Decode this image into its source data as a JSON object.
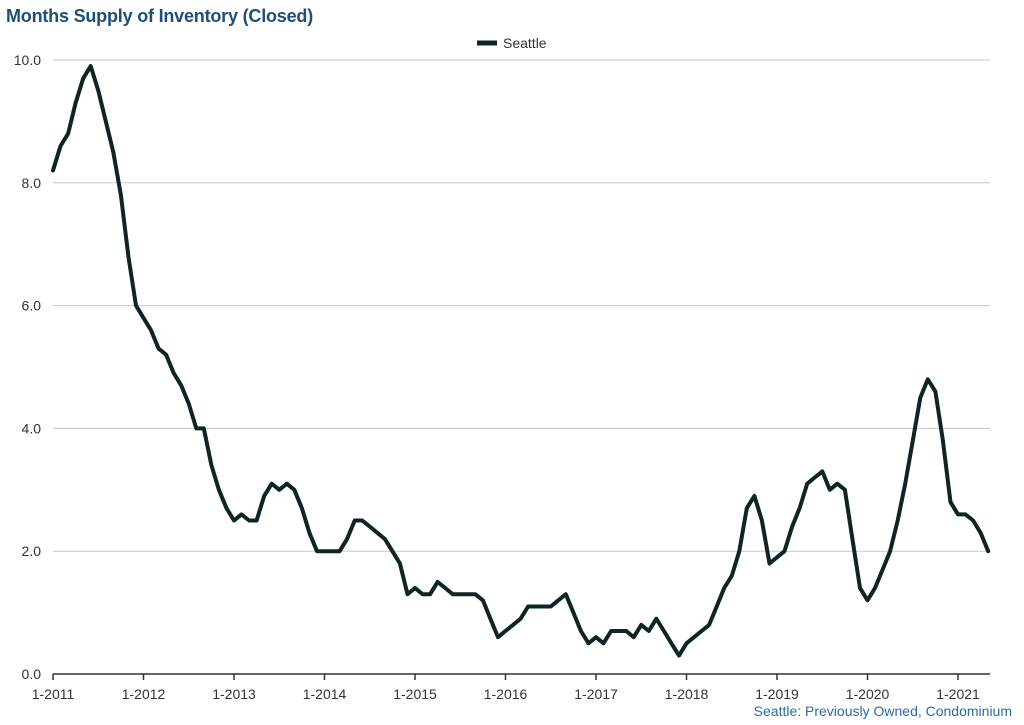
{
  "chart_data": {
    "type": "line",
    "title": "Months Supply of Inventory (Closed)",
    "footnote": "Seattle: Previously Owned, Condominium",
    "legend": {
      "position": "top-center"
    },
    "xlabel": "",
    "ylabel": "",
    "ylim": [
      0,
      10
    ],
    "yticks": [
      "0.0",
      "2.0",
      "4.0",
      "6.0",
      "8.0",
      "10.0"
    ],
    "xticks": [
      "1-2011",
      "1-2012",
      "1-2013",
      "1-2014",
      "1-2015",
      "1-2016",
      "1-2017",
      "1-2018",
      "1-2019",
      "1-2020",
      "1-2021"
    ],
    "grid": true,
    "colors": {
      "series": "#0f2424",
      "grid": "#c8c8c8",
      "axis": "#333333",
      "title": "#1f4e79",
      "footnote": "#2f6aa3"
    },
    "x_start": "1-2011",
    "x_frequency": "monthly",
    "series": [
      {
        "name": "Seattle",
        "values": [
          8.2,
          8.6,
          8.8,
          9.3,
          9.7,
          9.9,
          9.5,
          9.0,
          8.5,
          7.8,
          6.8,
          6.0,
          5.8,
          5.6,
          5.3,
          5.2,
          4.9,
          4.7,
          4.4,
          4.0,
          4.0,
          3.4,
          3.0,
          2.7,
          2.5,
          2.6,
          2.5,
          2.5,
          2.9,
          3.1,
          3.0,
          3.1,
          3.0,
          2.7,
          2.3,
          2.0,
          2.0,
          2.0,
          2.0,
          2.2,
          2.5,
          2.5,
          2.4,
          2.3,
          2.2,
          2.0,
          1.8,
          1.3,
          1.4,
          1.3,
          1.3,
          1.5,
          1.4,
          1.3,
          1.3,
          1.3,
          1.3,
          1.2,
          0.9,
          0.6,
          0.7,
          0.8,
          0.9,
          1.1,
          1.1,
          1.1,
          1.1,
          1.2,
          1.3,
          1.0,
          0.7,
          0.5,
          0.6,
          0.5,
          0.7,
          0.7,
          0.7,
          0.6,
          0.8,
          0.7,
          0.9,
          0.7,
          0.5,
          0.3,
          0.5,
          0.6,
          0.7,
          0.8,
          1.1,
          1.4,
          1.6,
          2.0,
          2.7,
          2.9,
          2.5,
          1.8,
          1.9,
          2.0,
          2.4,
          2.7,
          3.1,
          3.2,
          3.3,
          3.0,
          3.1,
          3.0,
          2.2,
          1.4,
          1.2,
          1.4,
          1.7,
          2.0,
          2.5,
          3.1,
          3.8,
          4.5,
          4.8,
          4.6,
          3.8,
          2.8,
          2.6,
          2.6,
          2.5,
          2.3,
          2.0
        ]
      }
    ]
  }
}
